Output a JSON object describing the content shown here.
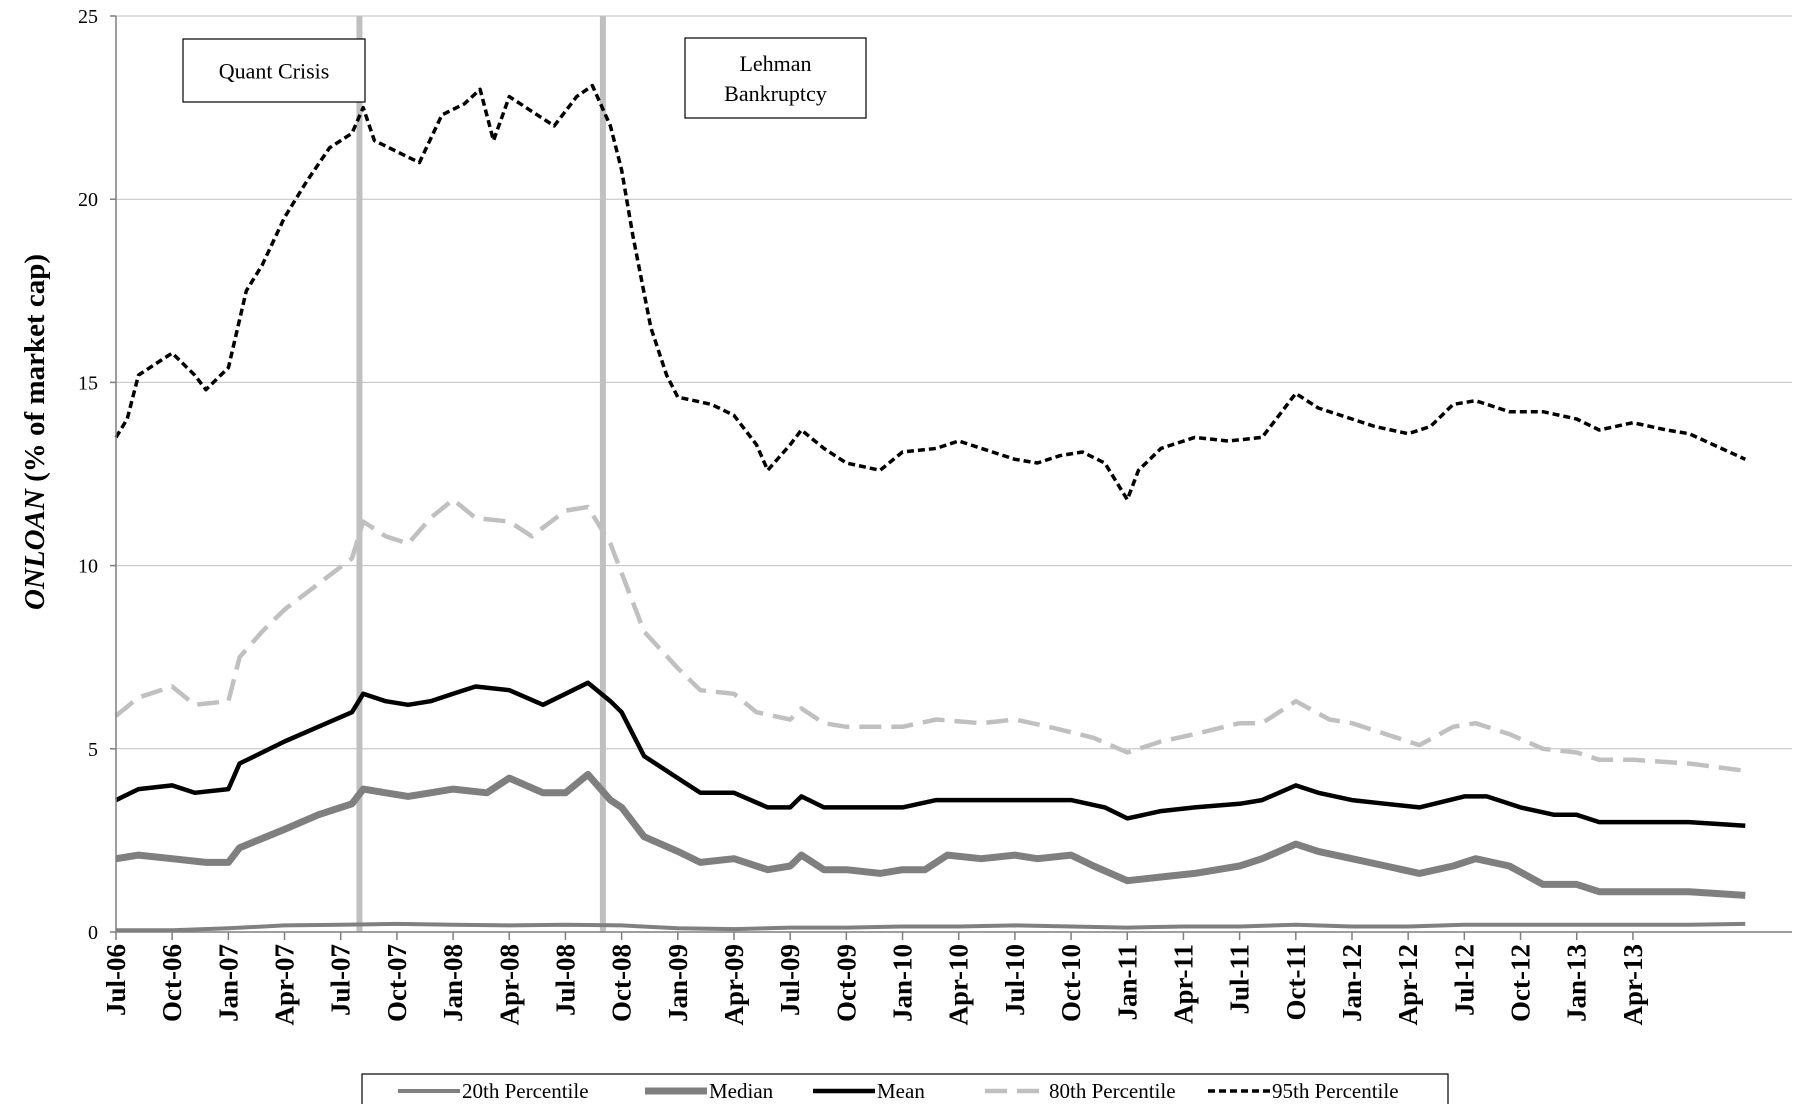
{
  "chart_data": {
    "type": "line",
    "title": "",
    "xlabel": "",
    "ylabel_italic": "ONLOAN",
    "ylabel_rest": " (% of market cap)",
    "ylim": [
      0,
      25
    ],
    "y_ticks": [
      "0",
      "5",
      "10",
      "15",
      "20",
      "25"
    ],
    "x_range": [
      "2006-07",
      "2013-07"
    ],
    "x_tick_labels": [
      "Jul-06",
      "Oct-06",
      "Jan-07",
      "Apr-07",
      "Jul-07",
      "Oct-07",
      "Jan-08",
      "Apr-08",
      "Jul-08",
      "Oct-08",
      "Jan-09",
      "Apr-09",
      "Jul-09",
      "Oct-09",
      "Jan-10",
      "Apr-10",
      "Jul-10",
      "Oct-10",
      "Jan-11",
      "Apr-11",
      "Jul-11",
      "Oct-11",
      "Jan-12",
      "Apr-12",
      "Jul-12",
      "Oct-12",
      "Jan-13",
      "Apr-13"
    ],
    "grid": "horizontal",
    "legend_position": "bottom",
    "events": [
      {
        "label_lines": [
          "Quant Crisis"
        ],
        "date": "2007-08"
      },
      {
        "label_lines": [
          "Lehman",
          "Bankruptcy"
        ],
        "date": "2008-09"
      }
    ],
    "series": [
      {
        "name": "20th Percentile",
        "style": "solid",
        "color": "#808080",
        "values": [
          [
            2006.5,
            0.05
          ],
          [
            2006.75,
            0.05
          ],
          [
            2007.0,
            0.1
          ],
          [
            2007.25,
            0.18
          ],
          [
            2007.5,
            0.2
          ],
          [
            2007.75,
            0.22
          ],
          [
            2008.0,
            0.2
          ],
          [
            2008.25,
            0.18
          ],
          [
            2008.5,
            0.2
          ],
          [
            2008.75,
            0.18
          ],
          [
            2009.0,
            0.1
          ],
          [
            2009.25,
            0.08
          ],
          [
            2009.5,
            0.12
          ],
          [
            2009.75,
            0.12
          ],
          [
            2010.0,
            0.15
          ],
          [
            2010.25,
            0.15
          ],
          [
            2010.5,
            0.18
          ],
          [
            2010.75,
            0.15
          ],
          [
            2011.0,
            0.12
          ],
          [
            2011.25,
            0.15
          ],
          [
            2011.5,
            0.15
          ],
          [
            2011.75,
            0.2
          ],
          [
            2012.0,
            0.15
          ],
          [
            2012.25,
            0.15
          ],
          [
            2012.5,
            0.2
          ],
          [
            2012.75,
            0.2
          ],
          [
            2013.0,
            0.2
          ],
          [
            2013.25,
            0.2
          ],
          [
            2013.5,
            0.2
          ],
          [
            2013.75,
            0.22
          ]
        ]
      },
      {
        "name": "Median",
        "style": "solid",
        "color": "#7f7f7f",
        "values": [
          [
            2006.5,
            2.0
          ],
          [
            2006.6,
            2.1
          ],
          [
            2006.75,
            2.0
          ],
          [
            2006.9,
            1.9
          ],
          [
            2007.0,
            1.9
          ],
          [
            2007.05,
            2.3
          ],
          [
            2007.25,
            2.8
          ],
          [
            2007.4,
            3.2
          ],
          [
            2007.55,
            3.5
          ],
          [
            2007.6,
            3.9
          ],
          [
            2007.7,
            3.8
          ],
          [
            2007.8,
            3.7
          ],
          [
            2007.9,
            3.8
          ],
          [
            2008.0,
            3.9
          ],
          [
            2008.15,
            3.8
          ],
          [
            2008.25,
            4.2
          ],
          [
            2008.4,
            3.8
          ],
          [
            2008.5,
            3.8
          ],
          [
            2008.6,
            4.3
          ],
          [
            2008.7,
            3.6
          ],
          [
            2008.75,
            3.4
          ],
          [
            2008.85,
            2.6
          ],
          [
            2009.0,
            2.2
          ],
          [
            2009.1,
            1.9
          ],
          [
            2009.25,
            2.0
          ],
          [
            2009.4,
            1.7
          ],
          [
            2009.5,
            1.8
          ],
          [
            2009.55,
            2.1
          ],
          [
            2009.65,
            1.7
          ],
          [
            2009.75,
            1.7
          ],
          [
            2009.9,
            1.6
          ],
          [
            2010.0,
            1.7
          ],
          [
            2010.1,
            1.7
          ],
          [
            2010.2,
            2.1
          ],
          [
            2010.35,
            2.0
          ],
          [
            2010.5,
            2.1
          ],
          [
            2010.6,
            2.0
          ],
          [
            2010.75,
            2.1
          ],
          [
            2010.85,
            1.8
          ],
          [
            2011.0,
            1.4
          ],
          [
            2011.15,
            1.5
          ],
          [
            2011.3,
            1.6
          ],
          [
            2011.5,
            1.8
          ],
          [
            2011.6,
            2.0
          ],
          [
            2011.75,
            2.4
          ],
          [
            2011.85,
            2.2
          ],
          [
            2012.0,
            2.0
          ],
          [
            2012.15,
            1.8
          ],
          [
            2012.3,
            1.6
          ],
          [
            2012.45,
            1.8
          ],
          [
            2012.55,
            2.0
          ],
          [
            2012.7,
            1.8
          ],
          [
            2012.85,
            1.3
          ],
          [
            2013.0,
            1.3
          ],
          [
            2013.1,
            1.1
          ],
          [
            2013.25,
            1.1
          ],
          [
            2013.5,
            1.1
          ],
          [
            2013.75,
            1.0
          ]
        ]
      },
      {
        "name": "Mean",
        "style": "solid",
        "color": "#000000",
        "values": [
          [
            2006.5,
            3.6
          ],
          [
            2006.6,
            3.9
          ],
          [
            2006.75,
            4.0
          ],
          [
            2006.85,
            3.8
          ],
          [
            2007.0,
            3.9
          ],
          [
            2007.05,
            4.6
          ],
          [
            2007.25,
            5.2
          ],
          [
            2007.4,
            5.6
          ],
          [
            2007.55,
            6.0
          ],
          [
            2007.6,
            6.5
          ],
          [
            2007.7,
            6.3
          ],
          [
            2007.8,
            6.2
          ],
          [
            2007.9,
            6.3
          ],
          [
            2008.0,
            6.5
          ],
          [
            2008.1,
            6.7
          ],
          [
            2008.25,
            6.6
          ],
          [
            2008.4,
            6.2
          ],
          [
            2008.5,
            6.5
          ],
          [
            2008.6,
            6.8
          ],
          [
            2008.7,
            6.3
          ],
          [
            2008.75,
            6.0
          ],
          [
            2008.85,
            4.8
          ],
          [
            2009.0,
            4.2
          ],
          [
            2009.1,
            3.8
          ],
          [
            2009.25,
            3.8
          ],
          [
            2009.4,
            3.4
          ],
          [
            2009.5,
            3.4
          ],
          [
            2009.55,
            3.7
          ],
          [
            2009.65,
            3.4
          ],
          [
            2009.75,
            3.4
          ],
          [
            2010.0,
            3.4
          ],
          [
            2010.15,
            3.6
          ],
          [
            2010.35,
            3.6
          ],
          [
            2010.5,
            3.6
          ],
          [
            2010.75,
            3.6
          ],
          [
            2010.9,
            3.4
          ],
          [
            2011.0,
            3.1
          ],
          [
            2011.15,
            3.3
          ],
          [
            2011.3,
            3.4
          ],
          [
            2011.5,
            3.5
          ],
          [
            2011.6,
            3.6
          ],
          [
            2011.75,
            4.0
          ],
          [
            2011.85,
            3.8
          ],
          [
            2012.0,
            3.6
          ],
          [
            2012.15,
            3.5
          ],
          [
            2012.3,
            3.4
          ],
          [
            2012.5,
            3.7
          ],
          [
            2012.6,
            3.7
          ],
          [
            2012.75,
            3.4
          ],
          [
            2012.9,
            3.2
          ],
          [
            2013.0,
            3.2
          ],
          [
            2013.1,
            3.0
          ],
          [
            2013.25,
            3.0
          ],
          [
            2013.5,
            3.0
          ],
          [
            2013.75,
            2.9
          ]
        ]
      },
      {
        "name": "80th Percentile",
        "style": "dash",
        "color": "#c0c0c0",
        "values": [
          [
            2006.5,
            5.9
          ],
          [
            2006.6,
            6.4
          ],
          [
            2006.75,
            6.7
          ],
          [
            2006.85,
            6.2
          ],
          [
            2007.0,
            6.3
          ],
          [
            2007.05,
            7.5
          ],
          [
            2007.15,
            8.2
          ],
          [
            2007.25,
            8.8
          ],
          [
            2007.4,
            9.5
          ],
          [
            2007.55,
            10.2
          ],
          [
            2007.6,
            11.2
          ],
          [
            2007.7,
            10.8
          ],
          [
            2007.8,
            10.6
          ],
          [
            2007.9,
            11.3
          ],
          [
            2008.0,
            11.8
          ],
          [
            2008.1,
            11.3
          ],
          [
            2008.25,
            11.2
          ],
          [
            2008.35,
            10.8
          ],
          [
            2008.5,
            11.5
          ],
          [
            2008.6,
            11.6
          ],
          [
            2008.7,
            10.6
          ],
          [
            2008.75,
            9.8
          ],
          [
            2008.85,
            8.2
          ],
          [
            2009.0,
            7.2
          ],
          [
            2009.1,
            6.6
          ],
          [
            2009.25,
            6.5
          ],
          [
            2009.35,
            6.0
          ],
          [
            2009.5,
            5.8
          ],
          [
            2009.55,
            6.1
          ],
          [
            2009.65,
            5.7
          ],
          [
            2009.75,
            5.6
          ],
          [
            2010.0,
            5.6
          ],
          [
            2010.15,
            5.8
          ],
          [
            2010.35,
            5.7
          ],
          [
            2010.5,
            5.8
          ],
          [
            2010.65,
            5.6
          ],
          [
            2010.85,
            5.3
          ],
          [
            2011.0,
            4.9
          ],
          [
            2011.15,
            5.2
          ],
          [
            2011.3,
            5.4
          ],
          [
            2011.5,
            5.7
          ],
          [
            2011.6,
            5.7
          ],
          [
            2011.75,
            6.3
          ],
          [
            2011.9,
            5.8
          ],
          [
            2012.0,
            5.7
          ],
          [
            2012.15,
            5.4
          ],
          [
            2012.3,
            5.1
          ],
          [
            2012.45,
            5.6
          ],
          [
            2012.55,
            5.7
          ],
          [
            2012.7,
            5.4
          ],
          [
            2012.85,
            5.0
          ],
          [
            2013.0,
            4.9
          ],
          [
            2013.1,
            4.7
          ],
          [
            2013.25,
            4.7
          ],
          [
            2013.5,
            4.6
          ],
          [
            2013.75,
            4.4
          ]
        ]
      },
      {
        "name": "95th Percentile",
        "style": "dot",
        "color": "#000000",
        "values": [
          [
            2006.5,
            13.5
          ],
          [
            2006.55,
            14.0
          ],
          [
            2006.6,
            15.2
          ],
          [
            2006.7,
            15.6
          ],
          [
            2006.75,
            15.8
          ],
          [
            2006.85,
            15.2
          ],
          [
            2006.9,
            14.8
          ],
          [
            2007.0,
            15.4
          ],
          [
            2007.08,
            17.5
          ],
          [
            2007.15,
            18.2
          ],
          [
            2007.25,
            19.5
          ],
          [
            2007.35,
            20.5
          ],
          [
            2007.45,
            21.4
          ],
          [
            2007.55,
            21.8
          ],
          [
            2007.6,
            22.5
          ],
          [
            2007.65,
            21.6
          ],
          [
            2007.75,
            21.3
          ],
          [
            2007.85,
            21.0
          ],
          [
            2007.95,
            22.3
          ],
          [
            2008.05,
            22.6
          ],
          [
            2008.12,
            23.0
          ],
          [
            2008.18,
            21.6
          ],
          [
            2008.25,
            22.8
          ],
          [
            2008.35,
            22.4
          ],
          [
            2008.45,
            22.0
          ],
          [
            2008.55,
            22.8
          ],
          [
            2008.62,
            23.1
          ],
          [
            2008.7,
            22.0
          ],
          [
            2008.75,
            20.8
          ],
          [
            2008.8,
            19.0
          ],
          [
            2008.88,
            16.5
          ],
          [
            2008.95,
            15.2
          ],
          [
            2009.0,
            14.6
          ],
          [
            2009.15,
            14.4
          ],
          [
            2009.25,
            14.1
          ],
          [
            2009.35,
            13.3
          ],
          [
            2009.4,
            12.6
          ],
          [
            2009.5,
            13.3
          ],
          [
            2009.55,
            13.7
          ],
          [
            2009.65,
            13.2
          ],
          [
            2009.75,
            12.8
          ],
          [
            2009.9,
            12.6
          ],
          [
            2010.0,
            13.1
          ],
          [
            2010.15,
            13.2
          ],
          [
            2010.25,
            13.4
          ],
          [
            2010.4,
            13.1
          ],
          [
            2010.5,
            12.9
          ],
          [
            2010.6,
            12.8
          ],
          [
            2010.7,
            13.0
          ],
          [
            2010.8,
            13.1
          ],
          [
            2010.9,
            12.8
          ],
          [
            2011.0,
            11.8
          ],
          [
            2011.05,
            12.6
          ],
          [
            2011.15,
            13.2
          ],
          [
            2011.3,
            13.5
          ],
          [
            2011.45,
            13.4
          ],
          [
            2011.6,
            13.5
          ],
          [
            2011.75,
            14.7
          ],
          [
            2011.85,
            14.3
          ],
          [
            2012.0,
            14.0
          ],
          [
            2012.1,
            13.8
          ],
          [
            2012.25,
            13.6
          ],
          [
            2012.35,
            13.8
          ],
          [
            2012.45,
            14.4
          ],
          [
            2012.55,
            14.5
          ],
          [
            2012.7,
            14.2
          ],
          [
            2012.85,
            14.2
          ],
          [
            2013.0,
            14.0
          ],
          [
            2013.1,
            13.7
          ],
          [
            2013.25,
            13.9
          ],
          [
            2013.4,
            13.7
          ],
          [
            2013.5,
            13.6
          ],
          [
            2013.75,
            12.9
          ]
        ]
      }
    ]
  }
}
